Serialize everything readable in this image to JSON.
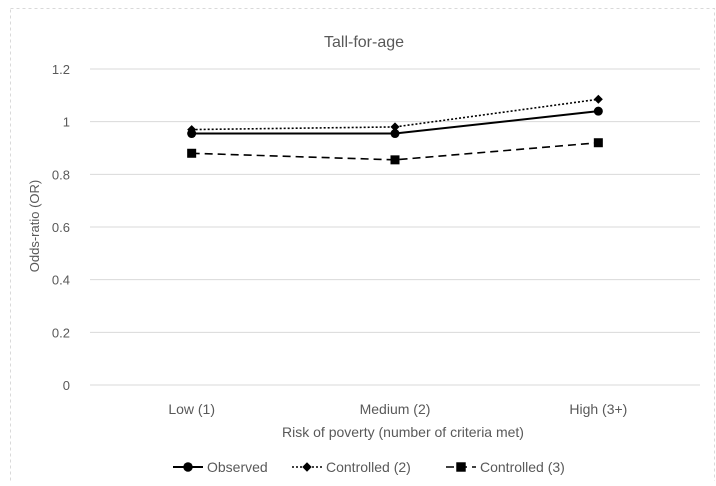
{
  "chart_data": {
    "type": "line",
    "title": "Tall-for-age",
    "xlabel": "Risk of poverty (number of criteria met)",
    "ylabel": "Odds-ratio (OR)",
    "categories": [
      "Low (1)",
      "Medium (2)",
      "High (3+)"
    ],
    "ylim": [
      0,
      1.2
    ],
    "yticks": [
      "0",
      "0.2",
      "0.4",
      "0.6",
      "0.8",
      "1",
      "1.2"
    ],
    "grid": true,
    "legend_position": "bottom",
    "series": [
      {
        "name": "Observed",
        "values": [
          0.955,
          0.955,
          1.04
        ],
        "marker": "circle",
        "line": "solid",
        "color": "#000000"
      },
      {
        "name": "Controlled (2)",
        "values": [
          0.97,
          0.98,
          1.085
        ],
        "marker": "diamond",
        "line": "dotted",
        "color": "#000000"
      },
      {
        "name": "Controlled (3)",
        "values": [
          0.88,
          0.855,
          0.92
        ],
        "marker": "square",
        "line": "dashed",
        "color": "#000000"
      }
    ]
  }
}
